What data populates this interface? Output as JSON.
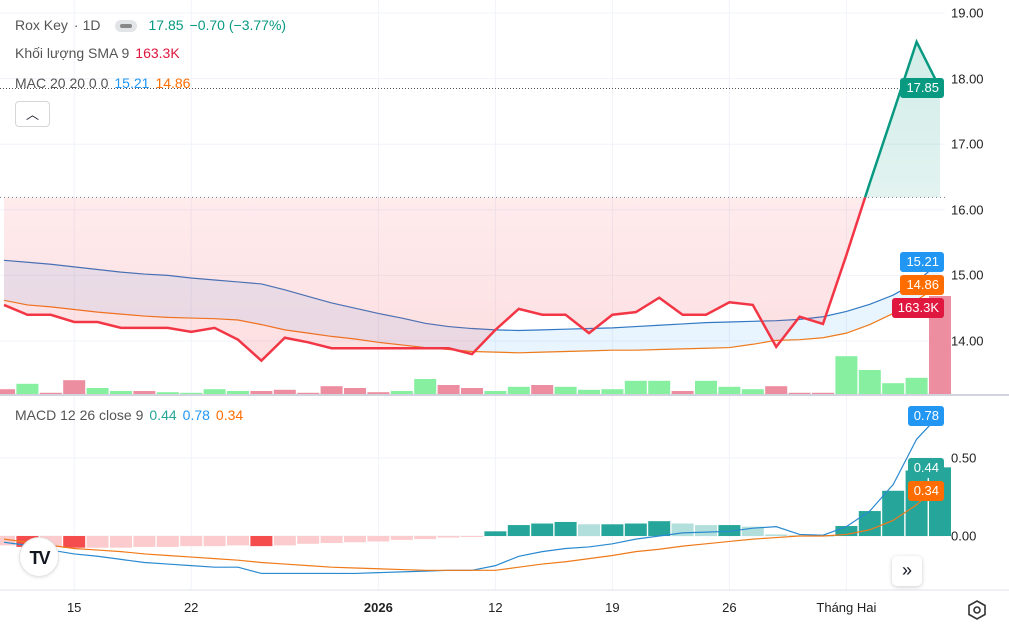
{
  "legend": {
    "symbol": "Rox Key",
    "interval": "1D",
    "price": "17.85",
    "change": "−0.70 (−3.77%)",
    "volume_label": "Khối lượng SMA 9",
    "volume_value": "163.3K",
    "mac_label": "MAC 20 20 0 0",
    "mac_upper": "15.21",
    "mac_lower": "14.86",
    "macd_label": "MACD 12 26 close 9",
    "macd_hist": "0.44",
    "macd_line": "0.78",
    "macd_signal": "0.34",
    "collapse_icon": "chevron-up-icon"
  },
  "price_axis": {
    "ticks": [
      "19.00",
      "18.00",
      "17.00",
      "16.00",
      "15.00",
      "14.00"
    ],
    "tick_values": [
      19,
      18,
      17,
      16,
      15,
      14
    ]
  },
  "macd_axis": {
    "ticks": [
      "0.50",
      "0.00"
    ],
    "tick_values": [
      0.5,
      0
    ]
  },
  "tags": {
    "price": "17.85",
    "mac_upper": "15.21",
    "mac_lower": "14.86",
    "volume": "163.3K",
    "macd_line": "0.78",
    "macd_hist": "0.44",
    "macd_signal": "0.34"
  },
  "time_axis": [
    {
      "label": "15",
      "index": 3
    },
    {
      "label": "22",
      "index": 8
    },
    {
      "label": "2026",
      "index": 16,
      "bold": true
    },
    {
      "label": "12",
      "index": 21
    },
    {
      "label": "19",
      "index": 26
    },
    {
      "label": "26",
      "index": 31
    },
    {
      "label": "Tháng Hai",
      "index": 36
    }
  ],
  "colors": {
    "up": "#089981",
    "down": "#f23645",
    "mac_upper": "#2196f3",
    "mac_lower": "#ff6d00",
    "vol_up": "#86f0a0",
    "vol_down": "#ec8ea0",
    "hist_up_strong": "#26a69a",
    "hist_up_weak": "#b2dfdb",
    "hist_down_strong": "#f54d4d",
    "hist_down_weak": "#fccbcd",
    "volume_tag": "#e0173f"
  },
  "chart_data": {
    "type": "line",
    "baseline": 16.19,
    "close": [
      14.55,
      14.4,
      14.4,
      14.29,
      14.29,
      14.2,
      14.2,
      14.2,
      14.14,
      14.2,
      14.02,
      13.7,
      14.05,
      13.98,
      13.89,
      13.89,
      13.89,
      13.89,
      13.89,
      13.89,
      13.8,
      14.17,
      14.49,
      14.4,
      14.4,
      14.12,
      14.4,
      14.44,
      14.66,
      14.4,
      14.4,
      14.59,
      14.55,
      13.91,
      14.37,
      14.26,
      15.31,
      16.41,
      17.48,
      18.56,
      17.85
    ],
    "mac_upper": [
      15.23,
      15.2,
      15.17,
      15.13,
      15.09,
      15.05,
      15.02,
      15.0,
      14.96,
      14.93,
      14.9,
      14.87,
      14.78,
      14.68,
      14.58,
      14.5,
      14.42,
      14.35,
      14.27,
      14.22,
      14.19,
      14.17,
      14.16,
      14.17,
      14.18,
      14.19,
      14.2,
      14.22,
      14.24,
      14.26,
      14.28,
      14.29,
      14.3,
      14.31,
      14.33,
      14.37,
      14.45,
      14.56,
      14.7,
      14.9,
      15.21
    ],
    "mac_lower": [
      14.62,
      14.55,
      14.52,
      14.48,
      14.44,
      14.41,
      14.38,
      14.36,
      14.35,
      14.34,
      14.32,
      14.25,
      14.17,
      14.12,
      14.07,
      14.03,
      13.98,
      13.94,
      13.9,
      13.87,
      13.84,
      13.83,
      13.82,
      13.83,
      13.84,
      13.85,
      13.86,
      13.86,
      13.87,
      13.88,
      13.89,
      13.9,
      13.95,
      14.01,
      14.02,
      14.05,
      14.12,
      14.25,
      14.42,
      14.62,
      14.86
    ],
    "volume_k": [
      8,
      17,
      2,
      23,
      10,
      5,
      5,
      3,
      2,
      8,
      5,
      5,
      7,
      2,
      13,
      10,
      3,
      5,
      25,
      15,
      10,
      5,
      12,
      15,
      12,
      7,
      8,
      22,
      22,
      5,
      22,
      12,
      8,
      13,
      2,
      2,
      63,
      40,
      18,
      27,
      163.3
    ],
    "volume_up": [
      0,
      1,
      0,
      0,
      1,
      1,
      0,
      1,
      1,
      1,
      1,
      0,
      0,
      0,
      0,
      0,
      0,
      1,
      1,
      0,
      0,
      1,
      1,
      0,
      1,
      1,
      1,
      1,
      1,
      0,
      1,
      1,
      1,
      0,
      0,
      0,
      1,
      1,
      1,
      1,
      0
    ],
    "macd_hist": [
      -0.06,
      -0.07,
      -0.07,
      -0.075,
      -0.075,
      -0.075,
      -0.07,
      -0.07,
      -0.065,
      -0.065,
      -0.06,
      -0.065,
      -0.06,
      -0.05,
      -0.045,
      -0.04,
      -0.035,
      -0.025,
      -0.02,
      -0.01,
      -0.005,
      0.03,
      0.07,
      0.08,
      0.09,
      0.075,
      0.075,
      0.08,
      0.095,
      0.08,
      0.07,
      0.07,
      0.06,
      0.01,
      0.005,
      0.005,
      0.064,
      0.16,
      0.29,
      0.42,
      0.44
    ],
    "macd_line": [
      -0.04,
      -0.06,
      -0.09,
      -0.115,
      -0.13,
      -0.15,
      -0.17,
      -0.18,
      -0.19,
      -0.2,
      -0.2,
      -0.24,
      -0.24,
      -0.24,
      -0.24,
      -0.24,
      -0.235,
      -0.23,
      -0.225,
      -0.22,
      -0.22,
      -0.19,
      -0.13,
      -0.1,
      -0.08,
      -0.07,
      -0.05,
      -0.02,
      0.0,
      0.02,
      0.025,
      0.03,
      0.05,
      0.06,
      0.01,
      0.005,
      0.06,
      0.16,
      0.33,
      0.62,
      0.78
    ],
    "macd_signal": [
      -0.02,
      -0.04,
      -0.06,
      -0.08,
      -0.09,
      -0.1,
      -0.115,
      -0.125,
      -0.135,
      -0.145,
      -0.155,
      -0.17,
      -0.18,
      -0.19,
      -0.2,
      -0.205,
      -0.21,
      -0.215,
      -0.22,
      -0.22,
      -0.22,
      -0.22,
      -0.2,
      -0.18,
      -0.165,
      -0.145,
      -0.125,
      -0.1,
      -0.085,
      -0.065,
      -0.05,
      -0.035,
      -0.02,
      -0.01,
      0.0,
      0.0,
      0.01,
      0.04,
      0.1,
      0.2,
      0.34
    ]
  }
}
